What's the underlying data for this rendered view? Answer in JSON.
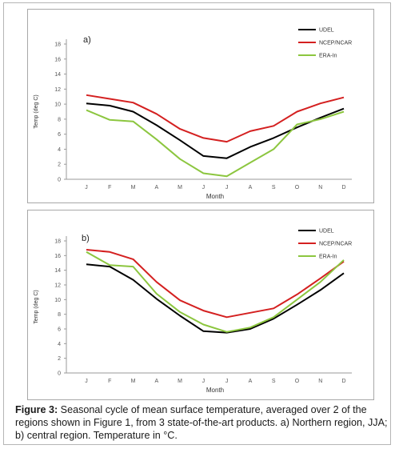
{
  "caption": {
    "label": "Figure 3:",
    "text": " Seasonal cycle of mean surface temperature, averaged over 2 of the regions shown in Figure 1, from 3 state-of-the-art products. a) Northern region, JJA; b) central region. Temperature in °C."
  },
  "chart_data": [
    {
      "type": "line",
      "panel_label": "a)",
      "xlabel": "Month",
      "ylabel": "Temp (deg C)",
      "categories": [
        "J",
        "F",
        "M",
        "A",
        "M",
        "J",
        "J",
        "A",
        "S",
        "O",
        "N",
        "D"
      ],
      "ylim": [
        0,
        18
      ],
      "yticks": [
        0,
        2,
        4,
        6,
        8,
        10,
        12,
        14,
        16,
        18
      ],
      "grid": false,
      "legend": "top-right",
      "series": [
        {
          "name": "UDEL",
          "color": "#000000",
          "values": [
            10.1,
            9.8,
            9.0,
            7.2,
            5.2,
            3.1,
            2.8,
            4.3,
            5.5,
            6.9,
            8.2,
            9.4
          ]
        },
        {
          "name": "NCEP/NCAR",
          "color": "#d42020",
          "values": [
            11.2,
            10.7,
            10.2,
            8.7,
            6.7,
            5.5,
            5.0,
            6.4,
            7.1,
            9.0,
            10.1,
            10.9
          ]
        },
        {
          "name": "ERA-In",
          "color": "#8cc63f",
          "values": [
            9.2,
            7.9,
            7.7,
            5.3,
            2.7,
            0.8,
            0.4,
            2.2,
            4.0,
            7.3,
            8.0,
            9.0
          ]
        }
      ]
    },
    {
      "type": "line",
      "panel_label": "b)",
      "xlabel": "Month",
      "ylabel": "Temp (deg C)",
      "categories": [
        "J",
        "F",
        "M",
        "A",
        "M",
        "J",
        "J",
        "A",
        "S",
        "O",
        "N",
        "D"
      ],
      "ylim": [
        0,
        18
      ],
      "yticks": [
        0,
        2,
        4,
        6,
        8,
        10,
        12,
        14,
        16,
        18
      ],
      "grid": false,
      "legend": "top-right",
      "series": [
        {
          "name": "UDEL",
          "color": "#000000",
          "values": [
            14.8,
            14.5,
            12.7,
            10.1,
            7.8,
            5.7,
            5.5,
            6.0,
            7.4,
            9.3,
            11.3,
            13.6
          ]
        },
        {
          "name": "NCEP/NCAR",
          "color": "#d42020",
          "values": [
            16.8,
            16.5,
            15.5,
            12.4,
            9.9,
            8.5,
            7.6,
            8.2,
            8.8,
            10.7,
            12.9,
            15.2
          ]
        },
        {
          "name": "ERA-In",
          "color": "#8cc63f",
          "values": [
            16.5,
            14.7,
            14.5,
            10.8,
            8.3,
            6.6,
            5.6,
            6.2,
            7.6,
            10.0,
            12.4,
            15.4
          ]
        }
      ]
    }
  ]
}
